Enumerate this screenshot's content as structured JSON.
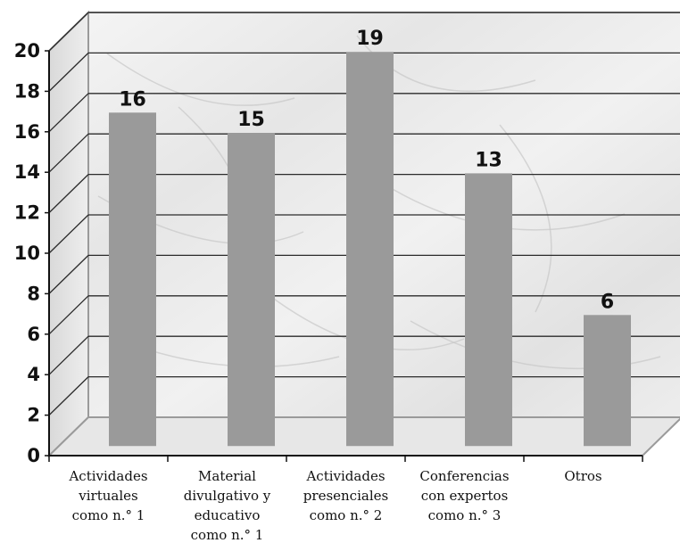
{
  "chart_data": {
    "type": "bar",
    "categories": [
      [
        "Actividades",
        "virtuales",
        "como n.° 1"
      ],
      [
        "Material",
        "divulgativo y",
        "educativo",
        "como n.° 1"
      ],
      [
        "Actividades",
        "presenciales",
        "como n.° 2"
      ],
      [
        "Conferencias",
        "con expertos",
        "como n.° 3"
      ],
      [
        "Otros"
      ]
    ],
    "values": [
      16,
      15,
      19,
      13,
      6
    ],
    "data_labels": [
      "16",
      "15",
      "19",
      "13",
      "6"
    ],
    "ylim": [
      0,
      20
    ],
    "yticks": [
      "0",
      "2",
      "4",
      "6",
      "8",
      "10",
      "12",
      "14",
      "16",
      "18",
      "20"
    ],
    "grid": true,
    "style": "3d-bar-with-marble-background",
    "colors": {
      "bar": "#9a9a9a",
      "grid": "#2b2b2b",
      "axis": "#111111"
    }
  }
}
